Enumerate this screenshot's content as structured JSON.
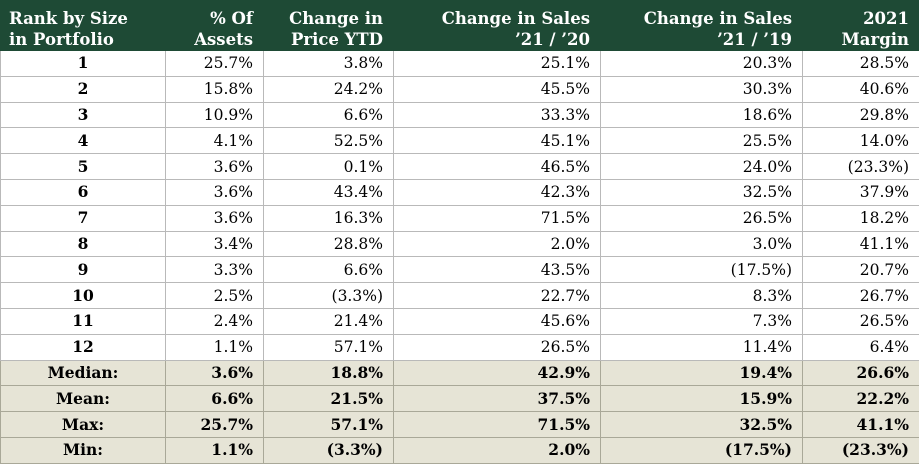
{
  "table": {
    "headers": [
      [
        "Rank by Size",
        "in Portfolio"
      ],
      [
        "% Of",
        "Assets"
      ],
      [
        "Change in",
        "Price YTD"
      ],
      [
        "Change in Sales",
        "’21 / ’20"
      ],
      [
        "Change in Sales",
        "’21 / ’19"
      ],
      [
        "2021",
        "Margin"
      ]
    ],
    "rows": [
      [
        "1",
        "25.7%",
        "3.8%",
        "25.1%",
        "20.3%",
        "28.5%"
      ],
      [
        "2",
        "15.8%",
        "24.2%",
        "45.5%",
        "30.3%",
        "40.6%"
      ],
      [
        "3",
        "10.9%",
        "6.6%",
        "33.3%",
        "18.6%",
        "29.8%"
      ],
      [
        "4",
        "4.1%",
        "52.5%",
        "45.1%",
        "25.5%",
        "14.0%"
      ],
      [
        "5",
        "3.6%",
        "0.1%",
        "46.5%",
        "24.0%",
        "(23.3%)"
      ],
      [
        "6",
        "3.6%",
        "43.4%",
        "42.3%",
        "32.5%",
        "37.9%"
      ],
      [
        "7",
        "3.6%",
        "16.3%",
        "71.5%",
        "26.5%",
        "18.2%"
      ],
      [
        "8",
        "3.4%",
        "28.8%",
        "2.0%",
        "3.0%",
        "41.1%"
      ],
      [
        "9",
        "3.3%",
        "6.6%",
        "43.5%",
        "(17.5%)",
        "20.7%"
      ],
      [
        "10",
        "2.5%",
        "(3.3%)",
        "22.7%",
        "8.3%",
        "26.7%"
      ],
      [
        "11",
        "2.4%",
        "21.4%",
        "45.6%",
        "7.3%",
        "26.5%"
      ],
      [
        "12",
        "1.1%",
        "57.1%",
        "26.5%",
        "11.4%",
        "6.4%"
      ]
    ],
    "summary": [
      [
        "Median:",
        "3.6%",
        "18.8%",
        "42.9%",
        "19.4%",
        "26.6%"
      ],
      [
        "Mean:",
        "6.6%",
        "21.5%",
        "37.5%",
        "15.9%",
        "22.2%"
      ],
      [
        "Max:",
        "25.7%",
        "57.1%",
        "71.5%",
        "32.5%",
        "41.1%"
      ],
      [
        "Min:",
        "1.1%",
        "(3.3%)",
        "2.0%",
        "(17.5%)",
        "(23.3%)"
      ]
    ]
  },
  "colors": {
    "header_bg": "#1e4a35",
    "header_text": "#ffffff",
    "summary_bg": "#e6e4d6",
    "grid": "#b9b9b9"
  }
}
